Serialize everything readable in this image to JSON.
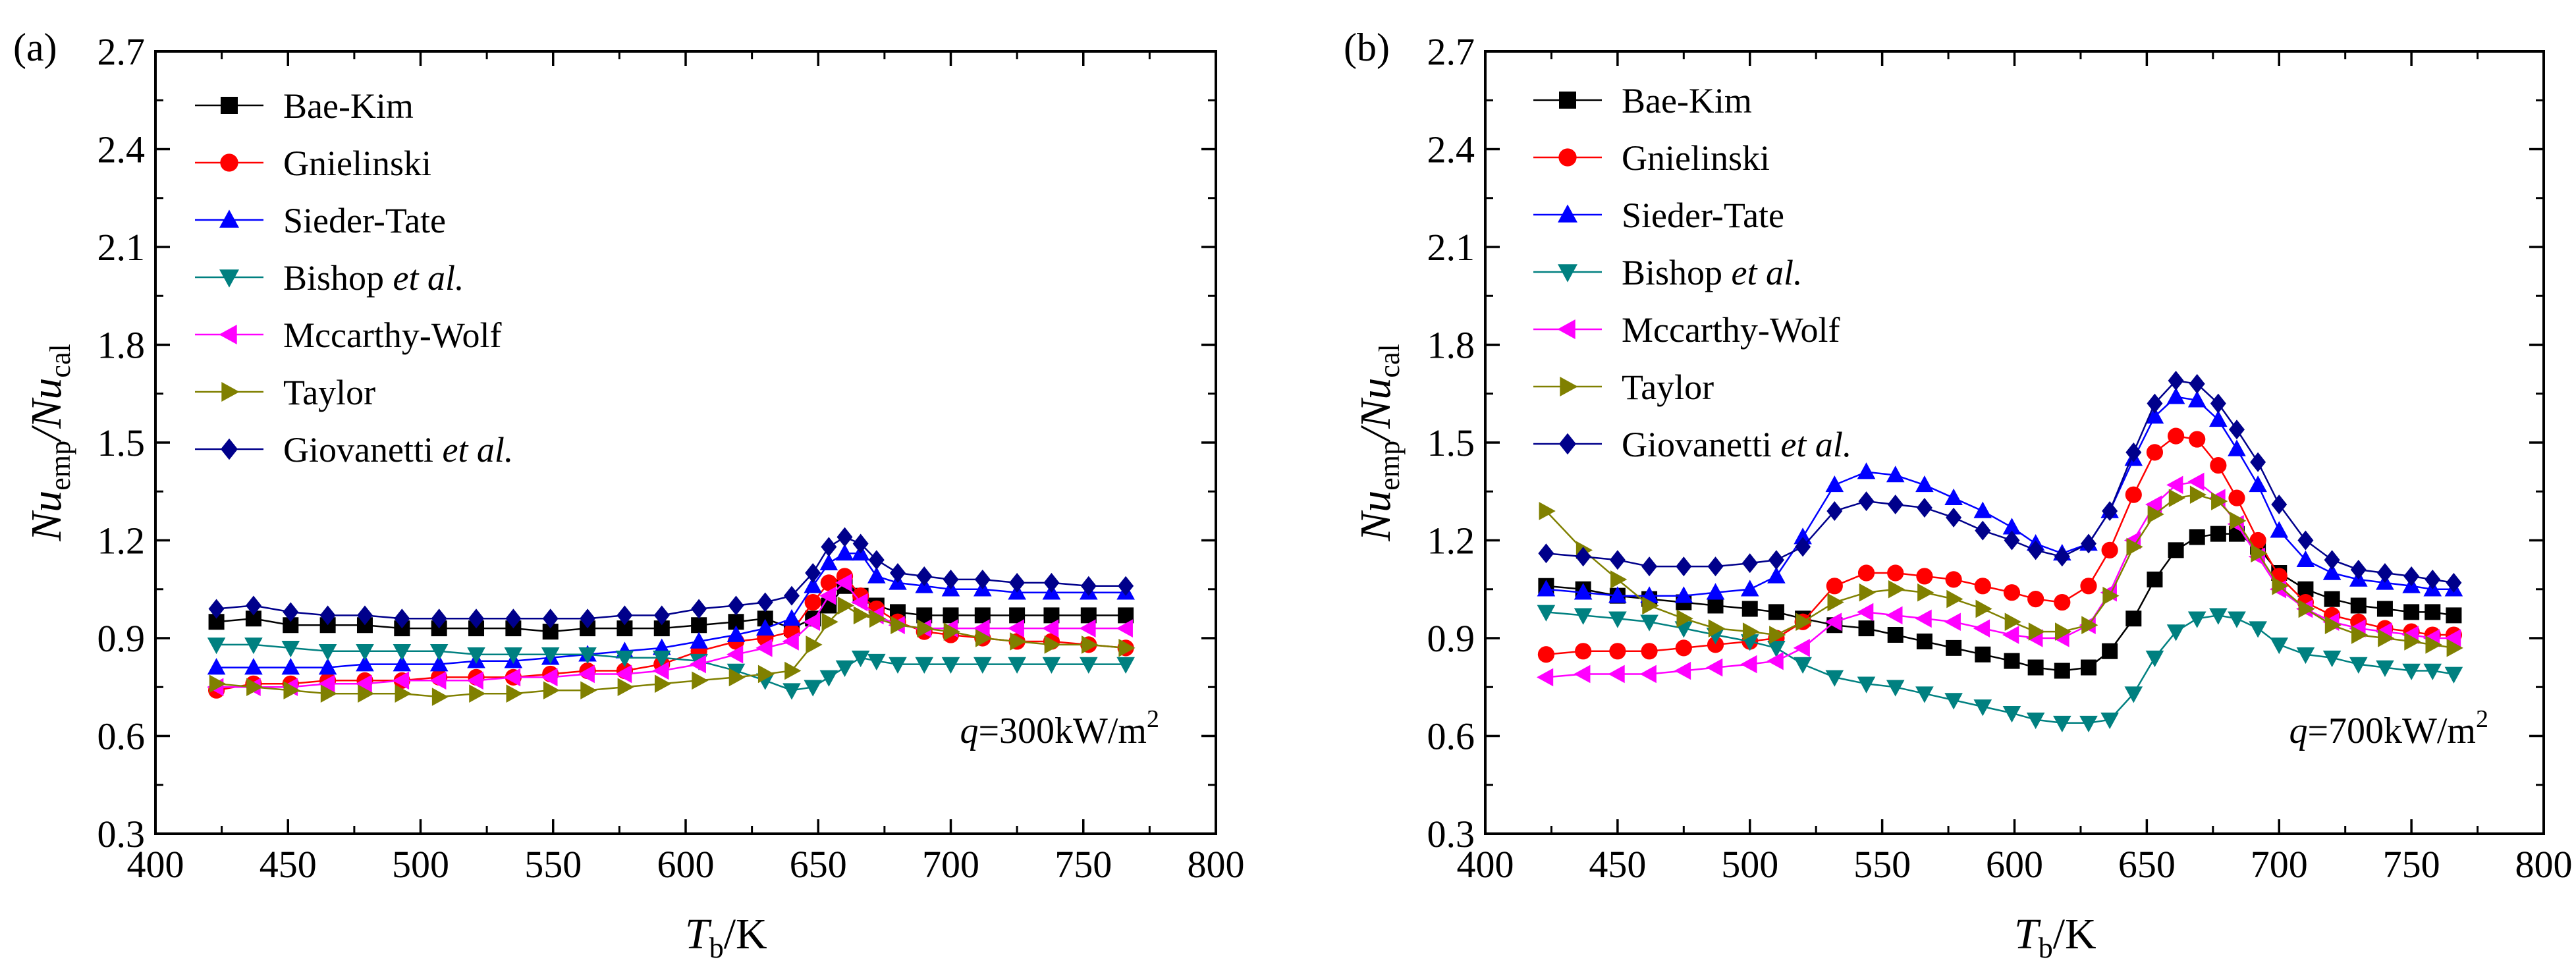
{
  "figure": {
    "description_labels": [
      "(a)",
      "(b)"
    ]
  },
  "chart_data": [
    {
      "type": "line",
      "panel_label": "(a)",
      "annotation": {
        "prefix": "q",
        "text": "=300kW/m",
        "sup": "2"
      },
      "xlabel": {
        "main": "T",
        "sub": "b",
        "rest": "/K"
      },
      "ylabel": {
        "a": "Nu",
        "a_sub": "emp",
        "b": "/Nu",
        "b_sub": "cal"
      },
      "xlim": [
        400,
        800
      ],
      "ylim": [
        0.3,
        2.7
      ],
      "xticks": [
        "400",
        "450",
        "500",
        "550",
        "600",
        "650",
        "700",
        "750",
        "800"
      ],
      "yticks": [
        "0.3",
        "0.6",
        "0.9",
        "1.2",
        "1.5",
        "1.8",
        "2.1",
        "2.4",
        "2.7"
      ],
      "x": [
        423,
        437,
        451,
        465,
        479,
        493,
        507,
        521,
        535,
        549,
        563,
        577,
        591,
        605,
        619,
        630,
        640,
        648,
        654,
        660,
        666,
        672,
        680,
        690,
        700,
        712,
        725,
        738,
        752,
        766
      ],
      "series": [
        {
          "name": "Bae-Kim",
          "italic": "",
          "color": "#000000",
          "marker": "square",
          "values": [
            0.95,
            0.96,
            0.94,
            0.94,
            0.94,
            0.93,
            0.93,
            0.93,
            0.93,
            0.92,
            0.93,
            0.93,
            0.93,
            0.94,
            0.95,
            0.96,
            0.93,
            0.96,
            1.0,
            1.06,
            1.03,
            1.0,
            0.98,
            0.97,
            0.97,
            0.97,
            0.97,
            0.97,
            0.97,
            0.97
          ]
        },
        {
          "name": "Gnielinski",
          "italic": "",
          "color": "#ff0000",
          "marker": "circle",
          "values": [
            0.74,
            0.76,
            0.76,
            0.77,
            0.77,
            0.77,
            0.78,
            0.78,
            0.78,
            0.79,
            0.8,
            0.8,
            0.82,
            0.86,
            0.89,
            0.9,
            0.92,
            1.01,
            1.07,
            1.09,
            1.03,
            0.99,
            0.95,
            0.92,
            0.91,
            0.9,
            0.89,
            0.89,
            0.88,
            0.87
          ]
        },
        {
          "name": "Sieder-Tate",
          "italic": "",
          "color": "#0000ff",
          "marker": "triangle-up",
          "values": [
            0.81,
            0.81,
            0.81,
            0.81,
            0.82,
            0.82,
            0.82,
            0.83,
            0.83,
            0.84,
            0.85,
            0.86,
            0.87,
            0.89,
            0.91,
            0.93,
            0.96,
            1.06,
            1.13,
            1.16,
            1.16,
            1.09,
            1.07,
            1.06,
            1.05,
            1.05,
            1.04,
            1.04,
            1.04,
            1.04
          ]
        },
        {
          "name": "Bishop ",
          "italic": "et al.",
          "color": "#008080",
          "marker": "triangle-down",
          "values": [
            0.88,
            0.88,
            0.87,
            0.86,
            0.86,
            0.86,
            0.86,
            0.85,
            0.85,
            0.85,
            0.85,
            0.84,
            0.84,
            0.83,
            0.8,
            0.77,
            0.74,
            0.75,
            0.78,
            0.81,
            0.84,
            0.83,
            0.82,
            0.82,
            0.82,
            0.82,
            0.82,
            0.82,
            0.82,
            0.82
          ]
        },
        {
          "name": "Mccarthy-Wolf",
          "italic": "",
          "color": "#ff00ff",
          "marker": "triangle-left",
          "values": [
            0.75,
            0.75,
            0.75,
            0.76,
            0.76,
            0.77,
            0.77,
            0.77,
            0.78,
            0.78,
            0.79,
            0.79,
            0.8,
            0.82,
            0.85,
            0.87,
            0.89,
            0.95,
            1.03,
            1.07,
            1.01,
            0.97,
            0.94,
            0.93,
            0.93,
            0.93,
            0.93,
            0.93,
            0.93,
            0.93
          ]
        },
        {
          "name": "Taylor",
          "italic": "",
          "color": "#808000",
          "marker": "triangle-right",
          "values": [
            0.76,
            0.75,
            0.74,
            0.73,
            0.73,
            0.73,
            0.72,
            0.73,
            0.73,
            0.74,
            0.74,
            0.75,
            0.76,
            0.77,
            0.78,
            0.79,
            0.8,
            0.88,
            0.95,
            1.0,
            0.97,
            0.96,
            0.94,
            0.93,
            0.92,
            0.9,
            0.89,
            0.88,
            0.88,
            0.87
          ]
        },
        {
          "name": "Giovanetti ",
          "italic": "et al.",
          "color": "#00008b",
          "marker": "diamond",
          "values": [
            0.99,
            1.0,
            0.98,
            0.97,
            0.97,
            0.96,
            0.96,
            0.96,
            0.96,
            0.96,
            0.96,
            0.97,
            0.97,
            0.99,
            1.0,
            1.01,
            1.03,
            1.1,
            1.18,
            1.21,
            1.19,
            1.14,
            1.1,
            1.09,
            1.08,
            1.08,
            1.07,
            1.07,
            1.06,
            1.06
          ]
        }
      ]
    },
    {
      "type": "line",
      "panel_label": "(b)",
      "annotation": {
        "prefix": "q",
        "text": "=700kW/m",
        "sup": "2"
      },
      "xlabel": {
        "main": "T",
        "sub": "b",
        "rest": "/K"
      },
      "ylabel": {
        "a": "Nu",
        "a_sub": "emp",
        "b": "/Nu",
        "b_sub": "cal"
      },
      "xlim": [
        400,
        800
      ],
      "ylim": [
        0.3,
        2.7
      ],
      "xticks": [
        "400",
        "450",
        "500",
        "550",
        "600",
        "650",
        "700",
        "750",
        "800"
      ],
      "yticks": [
        "0.3",
        "0.6",
        "0.9",
        "1.2",
        "1.5",
        "1.8",
        "2.1",
        "2.4",
        "2.7"
      ],
      "x": [
        423,
        437,
        450,
        462,
        475,
        487,
        500,
        510,
        520,
        532,
        544,
        555,
        566,
        577,
        588,
        599,
        608,
        618,
        628,
        636,
        645,
        653,
        661,
        669,
        677,
        684,
        692,
        700,
        710,
        720,
        730,
        740,
        750,
        758,
        766
      ],
      "series": [
        {
          "name": "Bae-Kim",
          "italic": "",
          "color": "#000000",
          "marker": "square",
          "values": [
            1.06,
            1.05,
            1.03,
            1.02,
            1.01,
            1.0,
            0.99,
            0.98,
            0.96,
            0.94,
            0.93,
            0.91,
            0.89,
            0.87,
            0.85,
            0.83,
            0.81,
            0.8,
            0.81,
            0.86,
            0.96,
            1.08,
            1.17,
            1.21,
            1.22,
            1.22,
            1.18,
            1.1,
            1.05,
            1.02,
            1.0,
            0.99,
            0.98,
            0.98,
            0.97
          ]
        },
        {
          "name": "Gnielinski",
          "italic": "",
          "color": "#ff0000",
          "marker": "circle",
          "values": [
            0.85,
            0.86,
            0.86,
            0.86,
            0.87,
            0.88,
            0.89,
            0.9,
            0.95,
            1.06,
            1.1,
            1.1,
            1.09,
            1.08,
            1.06,
            1.04,
            1.02,
            1.01,
            1.06,
            1.17,
            1.34,
            1.47,
            1.52,
            1.51,
            1.43,
            1.33,
            1.2,
            1.09,
            1.01,
            0.97,
            0.95,
            0.93,
            0.92,
            0.91,
            0.91
          ]
        },
        {
          "name": "Sieder-Tate",
          "italic": "",
          "color": "#0000ff",
          "marker": "triangle-up",
          "values": [
            1.05,
            1.04,
            1.03,
            1.03,
            1.03,
            1.04,
            1.05,
            1.09,
            1.21,
            1.37,
            1.41,
            1.4,
            1.37,
            1.33,
            1.29,
            1.24,
            1.19,
            1.16,
            1.19,
            1.29,
            1.45,
            1.58,
            1.64,
            1.63,
            1.57,
            1.48,
            1.37,
            1.23,
            1.14,
            1.1,
            1.08,
            1.07,
            1.06,
            1.05,
            1.05
          ]
        },
        {
          "name": "Bishop ",
          "italic": "et al.",
          "color": "#008080",
          "marker": "triangle-down",
          "values": [
            0.98,
            0.97,
            0.96,
            0.95,
            0.93,
            0.91,
            0.89,
            0.87,
            0.82,
            0.78,
            0.76,
            0.75,
            0.73,
            0.71,
            0.69,
            0.67,
            0.65,
            0.64,
            0.64,
            0.65,
            0.73,
            0.84,
            0.92,
            0.96,
            0.97,
            0.96,
            0.93,
            0.88,
            0.85,
            0.84,
            0.82,
            0.81,
            0.8,
            0.8,
            0.79
          ]
        },
        {
          "name": "Mccarthy-Wolf",
          "italic": "",
          "color": "#ff00ff",
          "marker": "triangle-left",
          "values": [
            0.78,
            0.79,
            0.79,
            0.79,
            0.8,
            0.81,
            0.82,
            0.83,
            0.87,
            0.95,
            0.98,
            0.97,
            0.96,
            0.95,
            0.93,
            0.91,
            0.9,
            0.9,
            0.94,
            1.04,
            1.2,
            1.31,
            1.37,
            1.38,
            1.33,
            1.25,
            1.15,
            1.05,
            0.99,
            0.95,
            0.93,
            0.92,
            0.91,
            0.9,
            0.9
          ]
        },
        {
          "name": "Taylor",
          "italic": "",
          "color": "#808000",
          "marker": "triangle-right",
          "values": [
            1.29,
            1.17,
            1.08,
            1.0,
            0.96,
            0.93,
            0.92,
            0.91,
            0.95,
            1.01,
            1.04,
            1.05,
            1.04,
            1.02,
            0.99,
            0.95,
            0.92,
            0.92,
            0.94,
            1.03,
            1.18,
            1.28,
            1.33,
            1.34,
            1.32,
            1.26,
            1.16,
            1.06,
            0.99,
            0.94,
            0.91,
            0.9,
            0.89,
            0.88,
            0.87
          ]
        },
        {
          "name": "Giovanetti ",
          "italic": "et al.",
          "color": "#00008b",
          "marker": "diamond",
          "values": [
            1.16,
            1.15,
            1.14,
            1.12,
            1.12,
            1.12,
            1.13,
            1.14,
            1.18,
            1.29,
            1.32,
            1.31,
            1.3,
            1.27,
            1.23,
            1.2,
            1.17,
            1.15,
            1.19,
            1.29,
            1.47,
            1.62,
            1.69,
            1.68,
            1.62,
            1.54,
            1.44,
            1.31,
            1.2,
            1.14,
            1.11,
            1.1,
            1.09,
            1.08,
            1.07
          ]
        }
      ]
    }
  ]
}
